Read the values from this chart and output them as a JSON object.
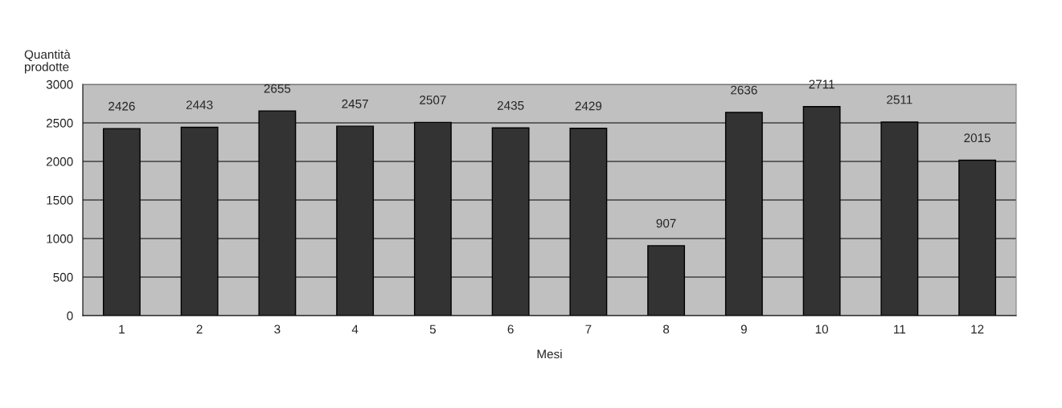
{
  "chart_data": {
    "type": "bar",
    "categories": [
      "1",
      "2",
      "3",
      "4",
      "5",
      "6",
      "7",
      "8",
      "9",
      "10",
      "11",
      "12"
    ],
    "values": [
      2426,
      2443,
      2655,
      2457,
      2507,
      2435,
      2429,
      907,
      2636,
      2711,
      2511,
      2015
    ],
    "color": "#333333",
    "ylabel": "Quantità\nprodotte",
    "xlabel": "Mesi",
    "ylim": [
      0,
      3000
    ],
    "yticks": [
      0,
      500,
      1000,
      1500,
      2000,
      2500,
      3000
    ],
    "grid": "y",
    "data_labels": true
  }
}
